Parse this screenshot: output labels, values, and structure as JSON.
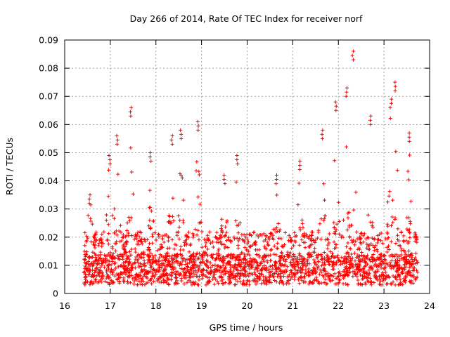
{
  "chart_data": {
    "type": "scatter",
    "title": "Day 266 of 2014, Rate Of TEC Index for receiver norf",
    "xlabel": "GPS time / hours",
    "ylabel": "ROTI / TECUs",
    "xlim": [
      16,
      24
    ],
    "ylim": [
      0,
      0.09
    ],
    "xticks": [
      16,
      17,
      18,
      19,
      20,
      21,
      22,
      23,
      24
    ],
    "xtick_labels": [
      "16",
      "17",
      "18",
      "19",
      "20",
      "21",
      "22",
      "23",
      "24"
    ],
    "yticks": [
      0,
      0.01,
      0.02,
      0.03,
      0.04,
      0.05,
      0.06,
      0.07,
      0.08,
      0.09
    ],
    "ytick_labels": [
      "0",
      "0.01",
      "0.02",
      "0.03",
      "0.04",
      "0.05",
      "0.06",
      "0.07",
      "0.08",
      "0.09"
    ],
    "grid": true,
    "marker": "+",
    "series": [
      {
        "name": "ROTI",
        "color": "#ff0000",
        "x_range": [
          16.42,
          23.75
        ],
        "peaks": [
          {
            "x": 16.55,
            "y": 0.035
          },
          {
            "x": 16.98,
            "y": 0.049
          },
          {
            "x": 17.15,
            "y": 0.056
          },
          {
            "x": 17.45,
            "y": 0.066
          },
          {
            "x": 17.88,
            "y": 0.05
          },
          {
            "x": 18.35,
            "y": 0.056
          },
          {
            "x": 18.55,
            "y": 0.058
          },
          {
            "x": 18.92,
            "y": 0.061
          },
          {
            "x": 19.5,
            "y": 0.042
          },
          {
            "x": 19.78,
            "y": 0.049
          },
          {
            "x": 20.65,
            "y": 0.042
          },
          {
            "x": 21.15,
            "y": 0.047
          },
          {
            "x": 21.65,
            "y": 0.058
          },
          {
            "x": 21.95,
            "y": 0.068
          },
          {
            "x": 22.18,
            "y": 0.073
          },
          {
            "x": 22.32,
            "y": 0.086
          },
          {
            "x": 22.7,
            "y": 0.063
          },
          {
            "x": 23.15,
            "y": 0.069
          },
          {
            "x": 23.25,
            "y": 0.075
          },
          {
            "x": 23.55,
            "y": 0.057
          }
        ]
      }
    ]
  }
}
